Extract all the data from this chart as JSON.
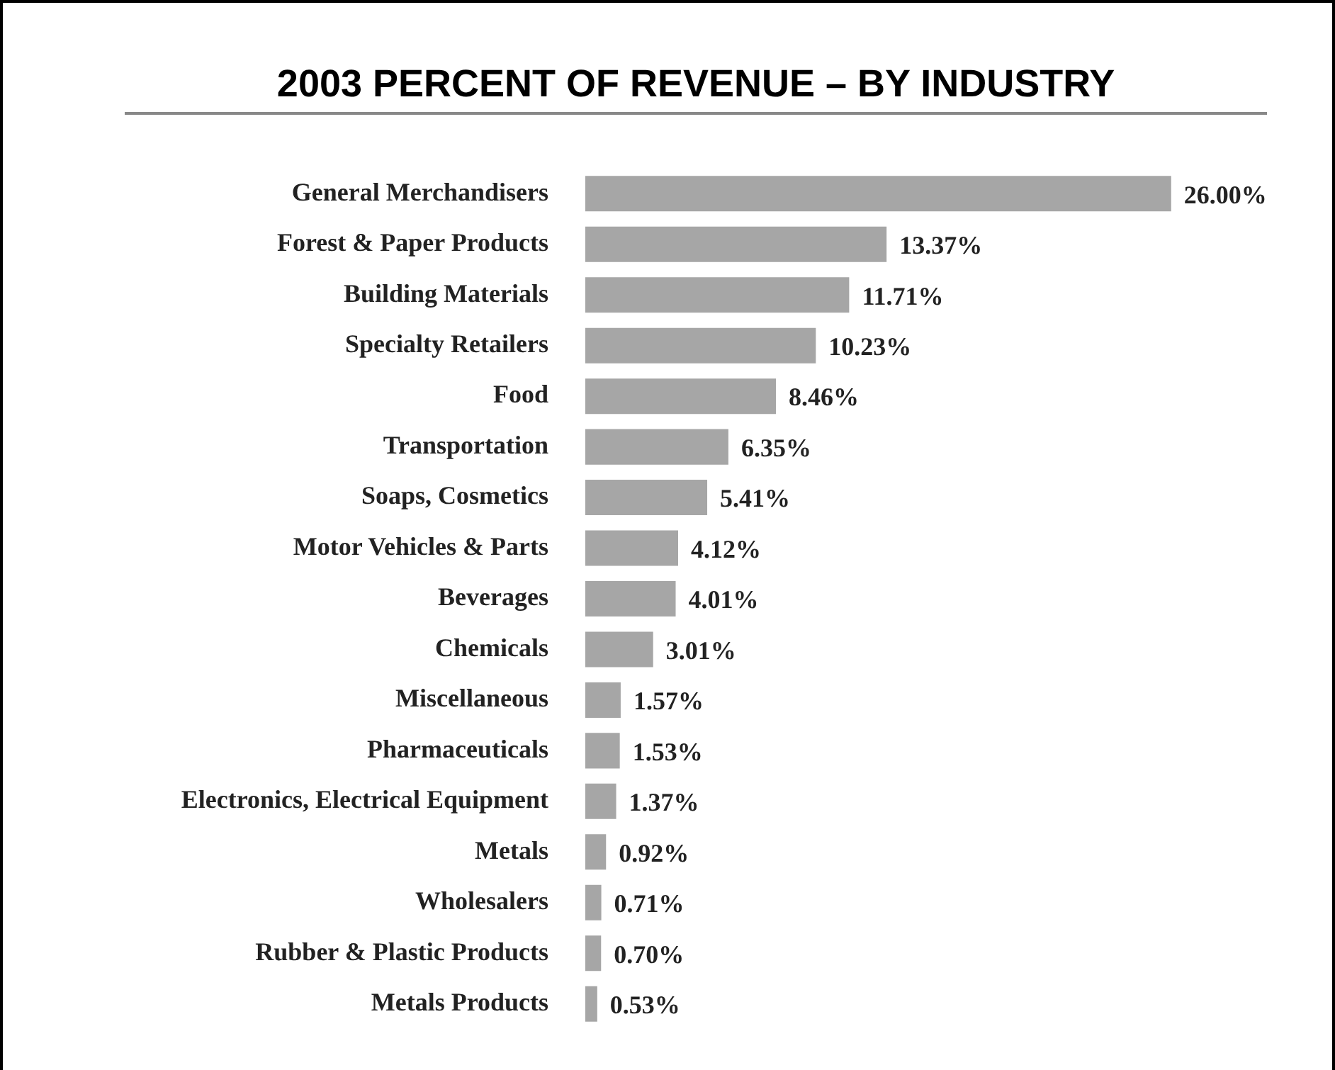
{
  "chart_data": {
    "type": "bar",
    "orientation": "horizontal",
    "title": "2003 PERCENT OF REVENUE – BY INDUSTRY",
    "categories": [
      "General Merchandisers",
      "Forest & Paper Products",
      "Building Materials",
      "Specialty Retailers",
      "Food",
      "Transportation",
      "Soaps, Cosmetics",
      "Motor Vehicles & Parts",
      "Beverages",
      "Chemicals",
      "Miscellaneous",
      "Pharmaceuticals",
      "Electronics, Electrical Equipment",
      "Metals",
      "Wholesalers",
      "Rubber & Plastic Products",
      "Metals Products"
    ],
    "values": [
      26.0,
      13.37,
      11.71,
      10.23,
      8.46,
      6.35,
      5.41,
      4.12,
      4.01,
      3.01,
      1.57,
      1.53,
      1.37,
      0.92,
      0.71,
      0.7,
      0.53
    ],
    "value_labels": [
      "26.00%",
      "13.37%",
      "11.71%",
      "10.23%",
      "8.46%",
      "6.35%",
      "5.41%",
      "4.12%",
      "4.01%",
      "3.01%",
      "1.57%",
      "1.53%",
      "1.37%",
      "0.92%",
      "0.71%",
      "0.70%",
      "0.53%"
    ],
    "color": "#a6a6a6"
  }
}
